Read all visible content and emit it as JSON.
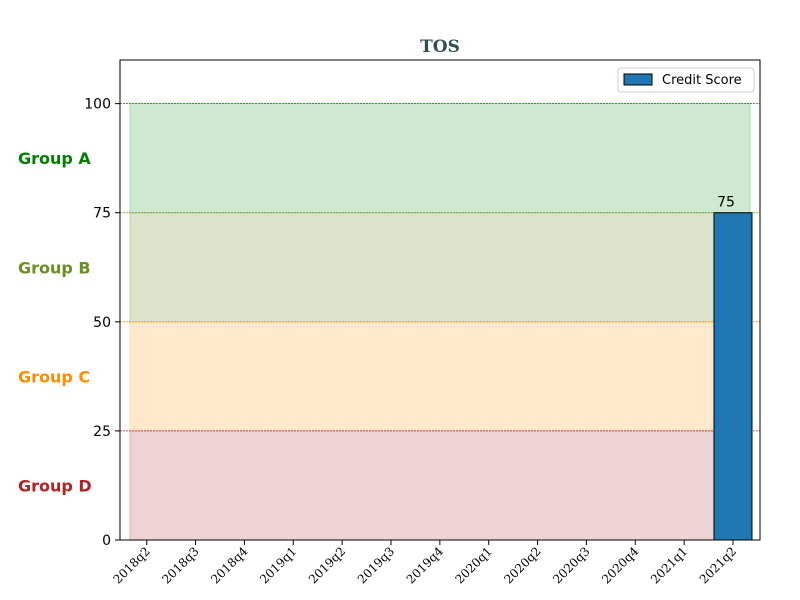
{
  "chart_data": {
    "type": "bar",
    "title": "TOS",
    "xlabel": "",
    "ylabel": "",
    "categories": [
      "2018q2",
      "2018q3",
      "2018q4",
      "2019q1",
      "2019q2",
      "2019q3",
      "2019q4",
      "2020q1",
      "2020q2",
      "2020q3",
      "2020q4",
      "2021q1",
      "2021q2"
    ],
    "series": [
      {
        "name": "Credit Score",
        "values": [
          null,
          null,
          null,
          null,
          null,
          null,
          null,
          null,
          null,
          null,
          null,
          null,
          75
        ],
        "color": "#1f77b4"
      }
    ],
    "data_labels": [
      "",
      "",
      "",
      "",
      "",
      "",
      "",
      "",
      "",
      "",
      "",
      "",
      "75"
    ],
    "ylim": [
      0,
      110
    ],
    "yticks": [
      0,
      25,
      50,
      75,
      100
    ],
    "grid": false,
    "legend_position": "top-right",
    "bands": [
      {
        "label": "Group A",
        "from": 75,
        "to": 100,
        "fill": "#9fd3a3",
        "label_color": "#008000",
        "line_color": "#008000"
      },
      {
        "label": "Group B",
        "from": 50,
        "to": 75,
        "fill": "#b9cc99",
        "label_color": "#6b8e23",
        "line_color": "#6b8e23"
      },
      {
        "label": "Group C",
        "from": 25,
        "to": 50,
        "fill": "#ffd39b",
        "label_color": "#ff8c00",
        "line_color": "#ff8c00"
      },
      {
        "label": "Group D",
        "from": 0,
        "to": 25,
        "fill": "#dca8ad",
        "label_color": "#b22222",
        "line_color": "#b22222"
      }
    ]
  }
}
